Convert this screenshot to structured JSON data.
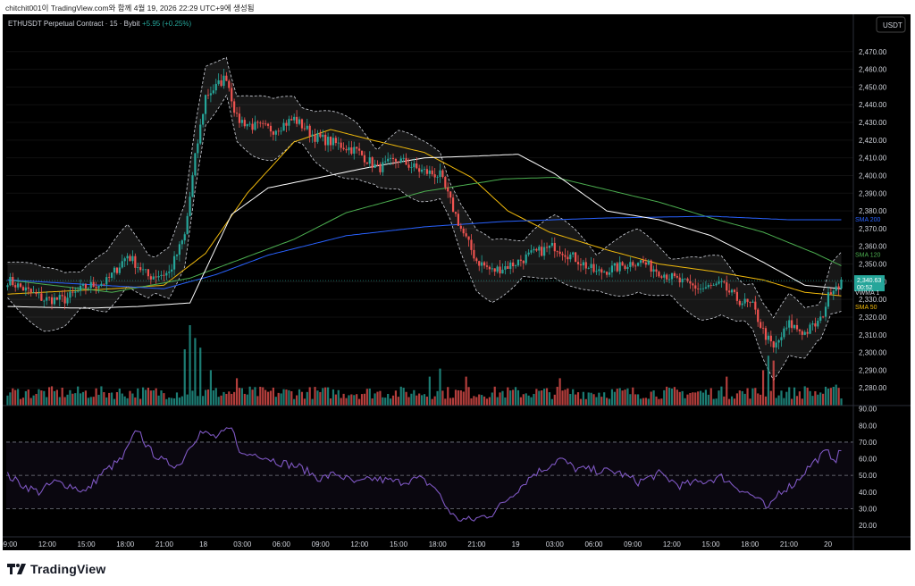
{
  "header_text": "chitchit001이 TradingView.com와 함께 4월 19, 2026 22:29 UTC+9에 생성됨",
  "chart_title": "ETHUSDT Perpetual Contract · 15 · Bybit",
  "change_text": "+5.95 (+0.25%)",
  "currency_button": "USDT",
  "brand": "TradingView",
  "colors": {
    "up": "#26a69a",
    "down": "#ef5350",
    "sma50": "#f0b90b",
    "sma120": "#4caf50",
    "sma200": "#2962ff",
    "vwma": "#ffffff",
    "rsi": "#7e57c2",
    "bg": "#000000"
  },
  "chart_data": {
    "type": "candlestick",
    "symbol": "ETHUSDT",
    "interval": "15",
    "exchange": "Bybit",
    "price_axis": {
      "min": 2270,
      "max": 2480,
      "ticks": [
        "2,470.00",
        "2,460.00",
        "2,450.00",
        "2,440.00",
        "2,430.00",
        "2,420.00",
        "2,410.00",
        "2,400.00",
        "2,390.00",
        "2,380.00",
        "2,370.00",
        "2,360.00",
        "2,350.00",
        "2,340.00",
        "2,330.00",
        "2,320.00",
        "2,310.00",
        "2,300.00",
        "2,290.00",
        "2,280.00"
      ]
    },
    "rsi_axis": {
      "min": 13,
      "max": 92,
      "ticks": [
        "90.00",
        "80.00",
        "70.00",
        "60.00",
        "50.00",
        "40.00",
        "30.00",
        "20.00"
      ],
      "overbought": 70,
      "oversold": 30
    },
    "time_axis": [
      "09:00",
      "12:00",
      "15:00",
      "18:00",
      "21:00",
      "18",
      "03:00",
      "06:00",
      "09:00",
      "12:00",
      "15:00",
      "18:00",
      "21:00",
      "19",
      "03:00",
      "06:00",
      "09:00",
      "12:00",
      "15:00",
      "18:00",
      "21:00",
      "20"
    ],
    "last_price_label": "2,340.63",
    "countdown": "00:52",
    "indicator_labels": {
      "sma120": "SMA 120",
      "sma200": "SMA 200",
      "vwma": "VWMA 1",
      "sma50": "SMA 50"
    },
    "close_anchors": [
      [
        0,
        2341
      ],
      [
        6,
        2336
      ],
      [
        14,
        2330
      ],
      [
        22,
        2330
      ],
      [
        30,
        2337
      ],
      [
        38,
        2340
      ],
      [
        46,
        2355
      ],
      [
        54,
        2343
      ],
      [
        62,
        2345
      ],
      [
        68,
        2366
      ],
      [
        72,
        2410
      ],
      [
        76,
        2445
      ],
      [
        80,
        2450
      ],
      [
        84,
        2456
      ],
      [
        88,
        2432
      ],
      [
        94,
        2428
      ],
      [
        102,
        2426
      ],
      [
        110,
        2432
      ],
      [
        118,
        2422
      ],
      [
        126,
        2418
      ],
      [
        134,
        2414
      ],
      [
        142,
        2404
      ],
      [
        150,
        2409
      ],
      [
        158,
        2403
      ],
      [
        166,
        2400
      ],
      [
        170,
        2385
      ],
      [
        174,
        2370
      ],
      [
        180,
        2352
      ],
      [
        186,
        2346
      ],
      [
        194,
        2350
      ],
      [
        202,
        2356
      ],
      [
        210,
        2360
      ],
      [
        218,
        2353
      ],
      [
        226,
        2345
      ],
      [
        234,
        2348
      ],
      [
        242,
        2352
      ],
      [
        250,
        2346
      ],
      [
        258,
        2340
      ],
      [
        266,
        2336
      ],
      [
        274,
        2338
      ],
      [
        280,
        2330
      ],
      [
        286,
        2326
      ],
      [
        290,
        2312
      ],
      [
        294,
        2302
      ],
      [
        300,
        2316
      ],
      [
        306,
        2311
      ],
      [
        312,
        2318
      ],
      [
        316,
        2336
      ],
      [
        320,
        2340
      ]
    ],
    "sma50_anchors": [
      [
        0,
        2333
      ],
      [
        40,
        2336
      ],
      [
        60,
        2338
      ],
      [
        76,
        2356
      ],
      [
        92,
        2390
      ],
      [
        110,
        2419
      ],
      [
        124,
        2426
      ],
      [
        140,
        2420
      ],
      [
        160,
        2413
      ],
      [
        178,
        2399
      ],
      [
        192,
        2380
      ],
      [
        208,
        2368
      ],
      [
        230,
        2358
      ],
      [
        250,
        2350
      ],
      [
        270,
        2346
      ],
      [
        290,
        2341
      ],
      [
        306,
        2334
      ],
      [
        320,
        2332
      ]
    ],
    "sma120_anchors": [
      [
        0,
        2341
      ],
      [
        40,
        2334
      ],
      [
        70,
        2342
      ],
      [
        90,
        2353
      ],
      [
        110,
        2364
      ],
      [
        130,
        2379
      ],
      [
        160,
        2391
      ],
      [
        190,
        2398
      ],
      [
        210,
        2399
      ],
      [
        230,
        2392
      ],
      [
        250,
        2385
      ],
      [
        270,
        2376
      ],
      [
        290,
        2368
      ],
      [
        310,
        2356
      ],
      [
        320,
        2349
      ]
    ],
    "sma200_anchors": [
      [
        0,
        2341
      ],
      [
        60,
        2336
      ],
      [
        80,
        2344
      ],
      [
        100,
        2355
      ],
      [
        130,
        2366
      ],
      [
        160,
        2371
      ],
      [
        190,
        2374
      ],
      [
        230,
        2376
      ],
      [
        270,
        2377
      ],
      [
        300,
        2375
      ],
      [
        320,
        2375
      ]
    ],
    "vwma_anchors": [
      [
        0,
        2326
      ],
      [
        30,
        2325
      ],
      [
        50,
        2326
      ],
      [
        70,
        2328
      ],
      [
        86,
        2378
      ],
      [
        100,
        2393
      ],
      [
        120,
        2399
      ],
      [
        140,
        2405
      ],
      [
        160,
        2410
      ],
      [
        180,
        2411
      ],
      [
        196,
        2412
      ],
      [
        210,
        2401
      ],
      [
        230,
        2380
      ],
      [
        250,
        2375
      ],
      [
        270,
        2366
      ],
      [
        290,
        2351
      ],
      [
        306,
        2338
      ],
      [
        320,
        2336
      ]
    ],
    "volume_spikes": [
      [
        68,
        3.5
      ],
      [
        70,
        5.0
      ],
      [
        72,
        4.2
      ],
      [
        74,
        3.6
      ],
      [
        78,
        2.2
      ],
      [
        88,
        1.7
      ],
      [
        162,
        1.8
      ],
      [
        166,
        2.3
      ],
      [
        176,
        1.8
      ],
      [
        212,
        1.7
      ],
      [
        276,
        1.8
      ],
      [
        290,
        2.2
      ],
      [
        292,
        3.1
      ],
      [
        294,
        2.8
      ],
      [
        306,
        1.2
      ],
      [
        316,
        1.1
      ],
      [
        318,
        1.3
      ]
    ],
    "rsi_anchors": [
      [
        0,
        50
      ],
      [
        6,
        44
      ],
      [
        12,
        40
      ],
      [
        18,
        46
      ],
      [
        24,
        44
      ],
      [
        30,
        40
      ],
      [
        36,
        51
      ],
      [
        44,
        60
      ],
      [
        50,
        78
      ],
      [
        54,
        66
      ],
      [
        60,
        58
      ],
      [
        66,
        56
      ],
      [
        70,
        68
      ],
      [
        74,
        76
      ],
      [
        80,
        73
      ],
      [
        86,
        78
      ],
      [
        90,
        62
      ],
      [
        96,
        63
      ],
      [
        104,
        58
      ],
      [
        112,
        55
      ],
      [
        120,
        48
      ],
      [
        126,
        51
      ],
      [
        134,
        45
      ],
      [
        140,
        48
      ],
      [
        150,
        46
      ],
      [
        158,
        48
      ],
      [
        164,
        43
      ],
      [
        168,
        32
      ],
      [
        172,
        24
      ],
      [
        178,
        23
      ],
      [
        186,
        27
      ],
      [
        194,
        39
      ],
      [
        202,
        51
      ],
      [
        206,
        54
      ],
      [
        212,
        60
      ],
      [
        218,
        54
      ],
      [
        226,
        53
      ],
      [
        234,
        52
      ],
      [
        242,
        46
      ],
      [
        250,
        51
      ],
      [
        258,
        44
      ],
      [
        266,
        46
      ],
      [
        274,
        49
      ],
      [
        282,
        41
      ],
      [
        288,
        36
      ],
      [
        292,
        29
      ],
      [
        296,
        40
      ],
      [
        302,
        45
      ],
      [
        308,
        56
      ],
      [
        314,
        64
      ],
      [
        318,
        60
      ],
      [
        320,
        65
      ]
    ]
  }
}
